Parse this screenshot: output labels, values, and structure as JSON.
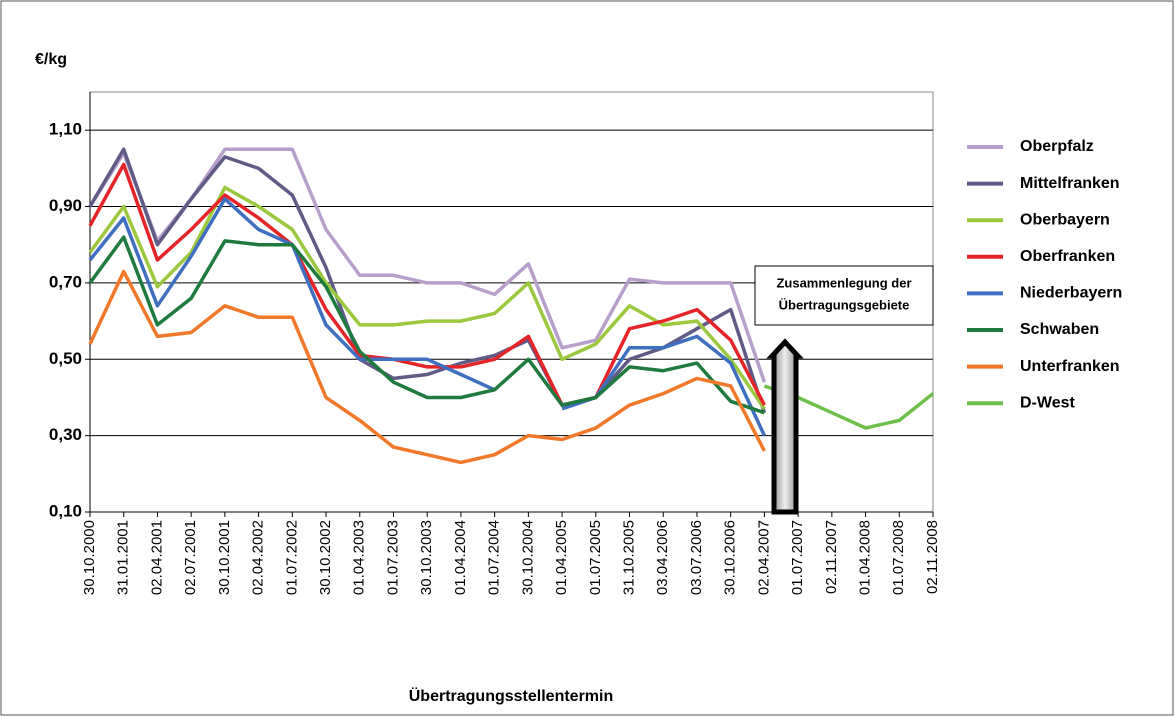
{
  "chart_data": {
    "type": "line",
    "y_label": "€/kg",
    "x_label": "Übertragungsstellentermin",
    "annotation": [
      "Zusammenlegung der",
      "Übertragungsgebiete"
    ],
    "categories": [
      "30.10.2000",
      "31.01.2001",
      "02.04.2001",
      "02.07.2001",
      "30.10.2001",
      "02.04.2002",
      "01.07.2002",
      "30.10.2002",
      "01.04.2003",
      "01.07.2003",
      "30.10.2003",
      "01.04.2004",
      "01.07.2004",
      "30.10.2004",
      "01.04.2005",
      "01.07.2005",
      "31.10.2005",
      "03.04.2006",
      "03.07.2006",
      "30.10.2006",
      "02.04.2007",
      "01.07.2007",
      "02.11.2007",
      "01.04.2008",
      "01.07.2008",
      "02.11.2008"
    ],
    "ylim": [
      0.1,
      1.2
    ],
    "yticks": [
      {
        "value": 0.1,
        "label": "0,10"
      },
      {
        "value": 0.3,
        "label": "0,30"
      },
      {
        "value": 0.5,
        "label": "0,50"
      },
      {
        "value": 0.7,
        "label": "0,70"
      },
      {
        "value": 0.9,
        "label": "0,90"
      },
      {
        "value": 1.1,
        "label": "1,10"
      }
    ],
    "grid": true,
    "legend": "right",
    "series": [
      {
        "name": "Oberpfalz",
        "color": "#b79fcb",
        "values": [
          0.9,
          1.04,
          0.81,
          0.92,
          1.05,
          1.05,
          1.05,
          0.84,
          0.72,
          0.72,
          0.7,
          0.7,
          0.67,
          0.75,
          0.53,
          0.55,
          0.71,
          0.7,
          0.7,
          0.7,
          0.44,
          null,
          null,
          null,
          null,
          null
        ]
      },
      {
        "name": "Mittelfranken",
        "color": "#5f5a86",
        "values": [
          0.9,
          1.05,
          0.8,
          0.92,
          1.03,
          1.0,
          0.93,
          0.74,
          0.5,
          0.45,
          0.46,
          0.49,
          0.51,
          0.55,
          0.38,
          0.4,
          0.5,
          0.53,
          0.58,
          0.63,
          0.36,
          null,
          null,
          null,
          null,
          null
        ]
      },
      {
        "name": "Oberbayern",
        "color": "#9bc83c",
        "values": [
          0.78,
          0.9,
          0.69,
          0.78,
          0.95,
          0.9,
          0.84,
          0.7,
          0.59,
          0.59,
          0.6,
          0.6,
          0.62,
          0.7,
          0.5,
          0.54,
          0.64,
          0.59,
          0.6,
          0.5,
          0.37,
          null,
          null,
          null,
          null,
          null
        ]
      },
      {
        "name": "Oberfranken",
        "color": "#e52428",
        "values": [
          0.85,
          1.01,
          0.76,
          0.84,
          0.93,
          0.87,
          0.8,
          0.63,
          0.51,
          0.5,
          0.48,
          0.48,
          0.5,
          0.56,
          0.38,
          0.4,
          0.58,
          0.6,
          0.63,
          0.55,
          0.38,
          null,
          null,
          null,
          null,
          null
        ]
      },
      {
        "name": "Niederbayern",
        "color": "#3f6fc0",
        "values": [
          0.76,
          0.87,
          0.64,
          0.77,
          0.92,
          0.84,
          0.8,
          0.59,
          0.5,
          0.5,
          0.5,
          0.46,
          0.42,
          null,
          0.37,
          0.4,
          0.53,
          0.53,
          0.56,
          0.49,
          0.3,
          null,
          null,
          null,
          null,
          null
        ]
      },
      {
        "name": "Schwaben",
        "color": "#1f7a3e",
        "values": [
          0.7,
          0.82,
          0.59,
          0.66,
          0.81,
          0.8,
          0.8,
          0.69,
          0.52,
          0.44,
          0.4,
          0.4,
          0.42,
          0.5,
          0.38,
          0.4,
          0.48,
          0.47,
          0.49,
          0.39,
          0.36,
          null,
          null,
          null,
          null,
          null
        ]
      },
      {
        "name": "Unterfranken",
        "color": "#f07828",
        "values": [
          0.54,
          0.73,
          0.56,
          0.57,
          0.64,
          0.61,
          0.61,
          0.4,
          0.34,
          0.27,
          0.25,
          0.23,
          0.25,
          0.3,
          0.29,
          0.32,
          0.38,
          0.41,
          0.45,
          0.43,
          0.26,
          null,
          null,
          null,
          null,
          null
        ]
      },
      {
        "name": "D-West",
        "color": "#6cc04a",
        "values": [
          null,
          null,
          null,
          null,
          null,
          null,
          null,
          null,
          null,
          null,
          null,
          null,
          null,
          null,
          null,
          null,
          null,
          null,
          null,
          null,
          0.43,
          0.4,
          0.36,
          0.32,
          0.34,
          0.41
        ]
      }
    ]
  }
}
